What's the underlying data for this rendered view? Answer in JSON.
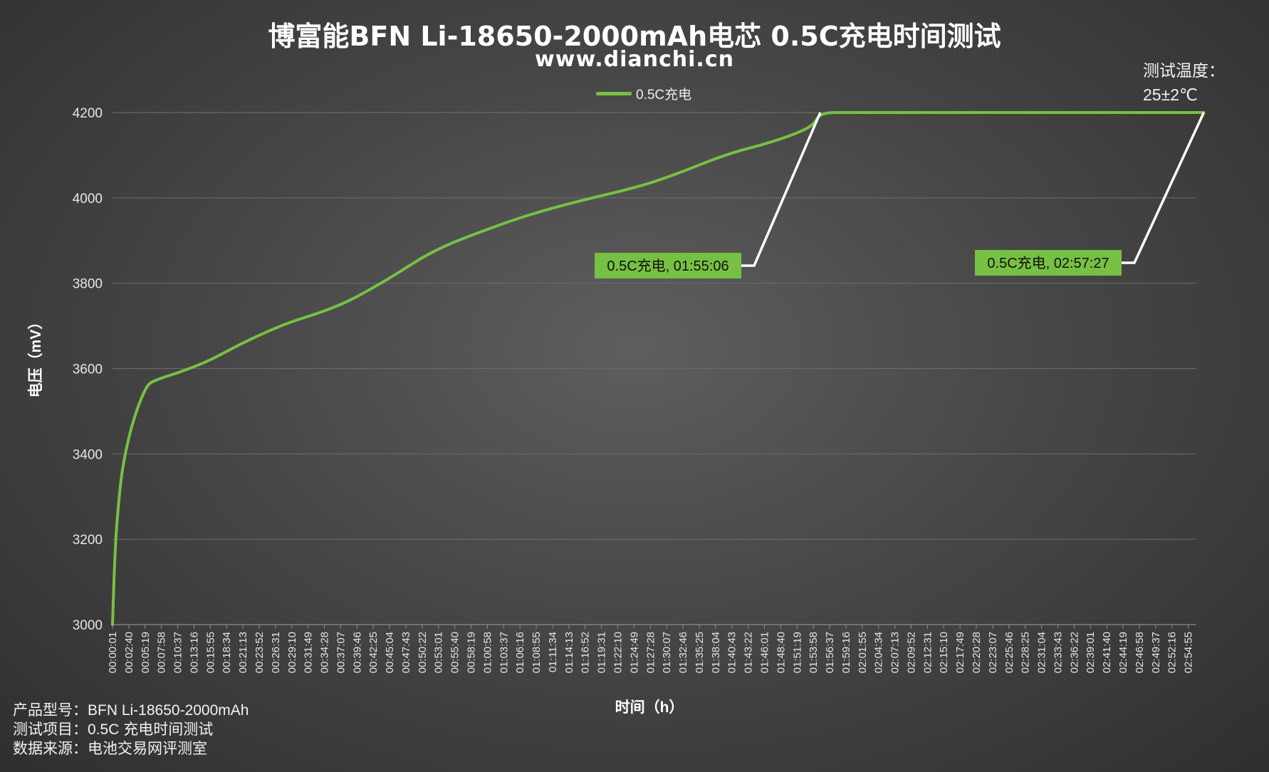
{
  "chart_data": {
    "type": "line",
    "title": "博富能BFN Li-18650-2000mAh电芯 0.5C充电时间测试",
    "subtitle": "www.dianchi.cn",
    "xlabel": "时间（h）",
    "ylabel": "电压（mV）",
    "ylim": [
      3000,
      4200
    ],
    "yticks": [
      3000,
      3200,
      3400,
      3600,
      3800,
      4000,
      4200
    ],
    "grid": true,
    "legend_position": "top-center",
    "color": "#77c043",
    "x_ticks": [
      "00:00:01",
      "00:02:40",
      "00:05:19",
      "00:07:58",
      "00:10:37",
      "00:13:16",
      "00:15:55",
      "00:18:34",
      "00:21:13",
      "00:23:52",
      "00:26:31",
      "00:29:10",
      "00:31:49",
      "00:34:28",
      "00:37:07",
      "00:39:46",
      "00:42:25",
      "00:45:04",
      "00:47:43",
      "00:50:22",
      "00:53:01",
      "00:55:40",
      "00:58:19",
      "01:00:58",
      "01:03:37",
      "01:06:16",
      "01:08:55",
      "01:11:34",
      "01:14:13",
      "01:16:52",
      "01:19:31",
      "01:22:10",
      "01:24:49",
      "01:27:28",
      "01:30:07",
      "01:32:46",
      "01:35:25",
      "01:38:04",
      "01:40:43",
      "01:43:22",
      "01:46:01",
      "01:48:40",
      "01:51:19",
      "01:53:58",
      "01:56:37",
      "01:59:16",
      "02:01:55",
      "02:04:34",
      "02:07:13",
      "02:09:52",
      "02:12:31",
      "02:15:10",
      "02:17:49",
      "02:20:28",
      "02:23:07",
      "02:25:46",
      "02:28:25",
      "02:31:04",
      "02:33:43",
      "02:36:22",
      "02:39:01",
      "02:41:40",
      "02:44:19",
      "02:46:58",
      "02:49:37",
      "02:52:16",
      "02:54:55"
    ],
    "series": [
      {
        "name": "0.5C充电",
        "x": [
          "00:00:01",
          "00:00:20",
          "00:00:40",
          "00:01:10",
          "00:01:40",
          "00:02:40",
          "00:03:40",
          "00:04:40",
          "00:05:40",
          "00:06:20",
          "00:06:40",
          "00:07:58",
          "00:10:37",
          "00:13:16",
          "00:15:55",
          "00:18:34",
          "00:21:13",
          "00:23:52",
          "00:26:31",
          "00:29:10",
          "00:31:49",
          "00:34:28",
          "00:37:07",
          "00:39:46",
          "00:42:25",
          "00:45:04",
          "00:47:43",
          "00:50:22",
          "00:53:01",
          "00:55:40",
          "00:58:19",
          "01:00:58",
          "01:03:37",
          "01:06:16",
          "01:08:55",
          "01:11:34",
          "01:14:13",
          "01:16:52",
          "01:19:31",
          "01:22:10",
          "01:24:49",
          "01:27:28",
          "01:30:07",
          "01:32:46",
          "01:35:25",
          "01:38:04",
          "01:40:43",
          "01:43:22",
          "01:46:01",
          "01:48:40",
          "01:51:19",
          "01:53:58",
          "01:55:06",
          "02:00:00",
          "02:10:00",
          "02:20:00",
          "02:30:00",
          "02:40:00",
          "02:50:00",
          "02:57:27"
        ],
        "values": [
          3000,
          3140,
          3230,
          3310,
          3370,
          3440,
          3490,
          3530,
          3560,
          3568,
          3570,
          3578,
          3590,
          3604,
          3620,
          3640,
          3660,
          3678,
          3695,
          3710,
          3722,
          3735,
          3750,
          3768,
          3790,
          3812,
          3836,
          3860,
          3880,
          3897,
          3912,
          3926,
          3940,
          3953,
          3965,
          3976,
          3986,
          3996,
          4005,
          4014,
          4024,
          4035,
          4048,
          4062,
          4077,
          4092,
          4105,
          4116,
          4126,
          4138,
          4152,
          4170,
          4200,
          4200,
          4200,
          4200,
          4200,
          4200,
          4200,
          4200
        ]
      }
    ],
    "annotations": [
      {
        "text": "0.5C充电, 01:55:06",
        "x": "01:55:06",
        "y": 4200
      },
      {
        "text": "0.5C充电, 02:57:27",
        "x": "02:57:27",
        "y": 4200
      }
    ]
  },
  "legend": {
    "label": "0.5C充电"
  },
  "temperature": {
    "label": "测试温度：",
    "value": "25±2℃"
  },
  "footer": {
    "model": "产品型号：BFN Li-18650-2000mAh",
    "test_item": "测试项目：0.5C 充电时间测试",
    "source": "数据来源：电池交易网评测室"
  }
}
